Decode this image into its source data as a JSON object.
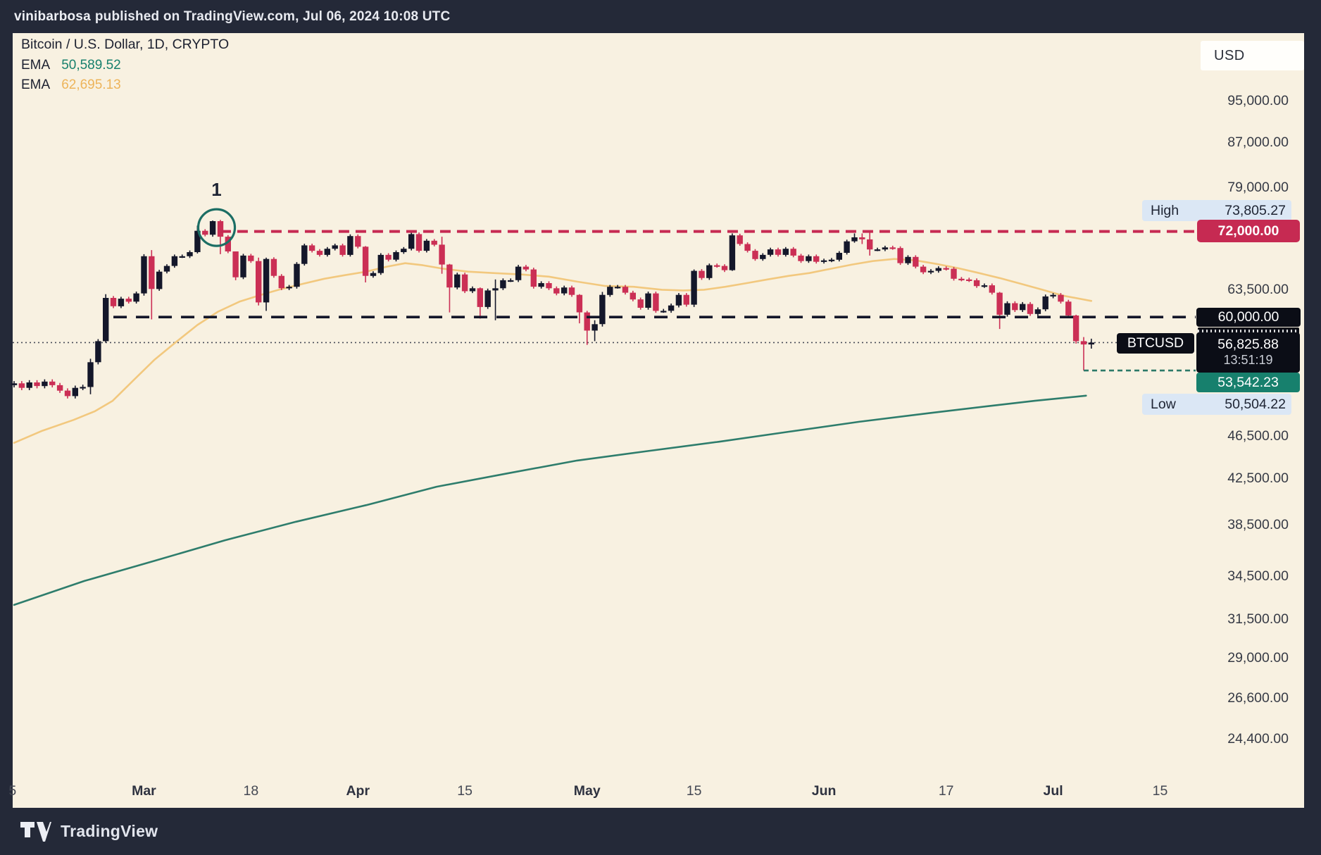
{
  "header": {
    "username": "vinibarbosa",
    "rest": "published on TradingView.com, Jul 06, 2024 10:08 UTC"
  },
  "legend": {
    "title": "Bitcoin / U.S. Dollar, 1D, CRYPTO",
    "ema_slow_label": "EMA",
    "ema_slow_value": "50,589.52",
    "ema_fast_label": "EMA",
    "ema_fast_value": "62,695.13"
  },
  "currency_button": "USD",
  "price_labels": {
    "high_label": "High",
    "high_value": "73,805.27",
    "resistance": "72,000.00",
    "support": "60,000.00",
    "symbol": "BTCUSD",
    "last_price": "56,825.88",
    "countdown": "13:51:19",
    "low_line": "53,542.23",
    "low_label": "Low",
    "low_value": "50,504.22"
  },
  "annotation": "1",
  "footer": {
    "brand": "TradingView"
  },
  "colors": {
    "background": "#242938",
    "paper": "#f8f1e1",
    "up_candle": "#14172a",
    "down_candle": "#cb2f55",
    "resistance_line": "#c62a52",
    "support_line": "#14172a",
    "last_price_line": "#474b57",
    "low_dash_line": "#2c7a69",
    "ema_slow": "#2e7d6c",
    "ema_fast": "#f2c87e",
    "annotation_circle": "#1c6e64",
    "badge_blue": "#dbe7f5",
    "badge_black": "#0b0d16",
    "badge_teal": "#17806d"
  },
  "chart_data": {
    "type": "candlestick",
    "symbol": "Bitcoin / U.S. Dollar",
    "interval": "1D",
    "exchange": "CRYPTO",
    "legend_position": "top-left",
    "grid": false,
    "scale": "logarithmic",
    "y_axis": {
      "ticks": [
        {
          "label": "95,000.00",
          "value": 95000
        },
        {
          "label": "87,000.00",
          "value": 87000
        },
        {
          "label": "79,000.00",
          "value": 79000
        },
        {
          "label": "63,500.00",
          "value": 63500
        },
        {
          "label": "46,500.00",
          "value": 46500
        },
        {
          "label": "42,500.00",
          "value": 42500
        },
        {
          "label": "38,500.00",
          "value": 38500
        },
        {
          "label": "34,500.00",
          "value": 34500
        },
        {
          "label": "31,500.00",
          "value": 31500
        },
        {
          "label": "29,000.00",
          "value": 29000
        },
        {
          "label": "26,600.00",
          "value": 26600
        },
        {
          "label": "24,400.00",
          "value": 24400
        }
      ]
    },
    "x_axis": {
      "ticks": [
        {
          "label": "5",
          "day": -0.2,
          "bold": false
        },
        {
          "label": "Mar",
          "day": 17,
          "bold": true
        },
        {
          "label": "18",
          "day": 31,
          "bold": false
        },
        {
          "label": "Apr",
          "day": 45,
          "bold": true
        },
        {
          "label": "15",
          "day": 59,
          "bold": false
        },
        {
          "label": "May",
          "day": 75,
          "bold": true
        },
        {
          "label": "15",
          "day": 89,
          "bold": false
        },
        {
          "label": "Jun",
          "day": 106,
          "bold": true
        },
        {
          "label": "17",
          "day": 122,
          "bold": false
        },
        {
          "label": "Jul",
          "day": 136,
          "bold": true
        },
        {
          "label": "15",
          "day": 150,
          "bold": false
        }
      ]
    },
    "levels": {
      "resistance": 72000,
      "resistance_start_day": 27,
      "support": 60000,
      "support_start_day": 13,
      "last_price": 56825.88,
      "low_line": 53542.23,
      "low_line_start_day": 140,
      "high_value": 73805.27,
      "low_value": 50504.22
    },
    "annotation_circle": {
      "day": 26.5,
      "price": 72600,
      "radius": 26,
      "label": "1"
    },
    "first_open": 51.9,
    "closes_k": [
      52.1,
      51.6,
      52.2,
      51.8,
      52.3,
      51.9,
      51.3,
      50.7,
      51.6,
      51.7,
      54.5,
      57.0,
      62.5,
      61.4,
      62.4,
      62.0,
      63.1,
      68.3,
      63.7,
      66.1,
      66.9,
      68.3,
      68.3,
      68.9,
      72.1,
      71.5,
      73.6,
      71.2,
      69.0,
      65.3,
      68.4,
      67.6,
      61.9,
      67.9,
      65.5,
      63.8,
      64.0,
      67.2,
      69.9,
      69.1,
      68.5,
      69.4,
      69.9,
      68.5,
      71.3,
      69.7,
      65.5,
      65.9,
      68.5,
      67.8,
      68.9,
      69.4,
      71.6,
      69.1,
      70.6,
      70.0,
      67.1,
      63.9,
      65.7,
      63.4,
      63.8,
      61.3,
      63.5,
      63.8,
      64.9,
      64.9,
      66.8,
      66.4,
      64.0,
      64.5,
      63.8,
      63.1,
      63.9,
      62.9,
      60.6,
      58.3,
      59.1,
      62.9,
      64.0,
      64.0,
      63.2,
      62.3,
      61.2,
      63.1,
      60.8,
      60.8,
      61.5,
      62.9,
      61.6,
      66.2,
      65.2,
      67.0,
      66.9,
      66.3,
      71.4,
      70.1,
      69.1,
      67.9,
      68.5,
      69.3,
      68.5,
      69.4,
      68.4,
      67.6,
      68.3,
      67.5,
      67.7,
      67.8,
      68.8,
      70.5,
      71.1,
      70.8,
      69.3,
      69.3,
      69.6,
      69.5,
      67.3,
      68.2,
      66.8,
      66.0,
      66.2,
      66.6,
      66.5,
      65.1,
      65.0,
      64.9,
      64.1,
      64.2,
      63.2,
      60.3,
      61.8,
      60.9,
      61.7,
      60.4,
      61.0,
      62.7,
      62.9,
      62.0,
      60.2,
      57.0,
      56.6,
      56.83
    ],
    "wicks_k": {
      "10": [
        54.9,
        50.9
      ],
      "12": [
        63.0,
        56.8
      ],
      "17": [
        68.6,
        62.8
      ],
      "18": [
        69.2,
        59.7
      ],
      "24": [
        72.9,
        68.7
      ],
      "26": [
        73.7,
        71.2
      ],
      "27": [
        73.805,
        68.6
      ],
      "29": [
        69.0,
        64.9
      ],
      "32": [
        68.1,
        61.5
      ],
      "33": [
        68.1,
        60.8
      ],
      "46": [
        69.8,
        64.6
      ],
      "56": [
        71.2,
        65.8
      ],
      "57": [
        67.2,
        60.6
      ],
      "61": [
        63.9,
        59.8
      ],
      "63": [
        65.0,
        59.6
      ],
      "74": [
        63.0,
        59.2
      ],
      "75": [
        60.8,
        56.55
      ],
      "76": [
        59.6,
        57.0
      ],
      "77": [
        63.3,
        58.8
      ],
      "89": [
        66.4,
        61.3
      ],
      "94": [
        71.7,
        66.2
      ],
      "110": [
        71.7,
        70.3
      ],
      "111": [
        71.7,
        70.1
      ],
      "112": [
        71.9,
        68.4
      ],
      "129": [
        63.3,
        58.5
      ],
      "139": [
        60.3,
        56.7
      ],
      "140": [
        57.5,
        53.542
      ],
      "141": [
        57.3,
        56.1
      ]
    },
    "ema_slow_points": [
      [
        0,
        32.5
      ],
      [
        9.2,
        34.2
      ],
      [
        18.4,
        35.7
      ],
      [
        27.6,
        37.3
      ],
      [
        36.9,
        38.8
      ],
      [
        46.1,
        40.2
      ],
      [
        55.3,
        41.8
      ],
      [
        64.5,
        43.0
      ],
      [
        73.7,
        44.2
      ],
      [
        82.9,
        45.1
      ],
      [
        92.2,
        46.0
      ],
      [
        101.4,
        47.0
      ],
      [
        110.6,
        48.0
      ],
      [
        119.8,
        48.9
      ],
      [
        127.2,
        49.6
      ],
      [
        133.6,
        50.2
      ],
      [
        140.3,
        50.75
      ]
    ],
    "ema_fast_points": [
      [
        0,
        45.9
      ],
      [
        3.7,
        47.1
      ],
      [
        7.8,
        48.2
      ],
      [
        10.6,
        49.1
      ],
      [
        12.9,
        50.2
      ],
      [
        15.7,
        52.5
      ],
      [
        18.4,
        54.8
      ],
      [
        21.2,
        56.9
      ],
      [
        24.0,
        59.0
      ],
      [
        26.7,
        60.7
      ],
      [
        29.5,
        62.0
      ],
      [
        32.3,
        62.9
      ],
      [
        35.0,
        63.7
      ],
      [
        37.8,
        64.4
      ],
      [
        40.6,
        65.1
      ],
      [
        43.3,
        65.6
      ],
      [
        46.1,
        66.1
      ],
      [
        48.8,
        66.8
      ],
      [
        51.2,
        67.3
      ],
      [
        53.5,
        67.0
      ],
      [
        56.2,
        66.5
      ],
      [
        59.4,
        66.1
      ],
      [
        62.7,
        65.9
      ],
      [
        66.4,
        65.7
      ],
      [
        70.0,
        65.4
      ],
      [
        73.7,
        64.7
      ],
      [
        77.4,
        64.1
      ],
      [
        81.1,
        64.0
      ],
      [
        84.8,
        63.6
      ],
      [
        87.6,
        63.5
      ],
      [
        90.3,
        63.6
      ],
      [
        93.1,
        64.0
      ],
      [
        95.9,
        64.5
      ],
      [
        98.6,
        65.0
      ],
      [
        101.4,
        65.5
      ],
      [
        104.1,
        65.9
      ],
      [
        106.9,
        66.5
      ],
      [
        109.7,
        67.1
      ],
      [
        112.4,
        67.6
      ],
      [
        115.2,
        67.9
      ],
      [
        118.0,
        67.7
      ],
      [
        120.7,
        67.2
      ],
      [
        123.5,
        66.6
      ],
      [
        126.3,
        65.9
      ],
      [
        129.0,
        65.2
      ],
      [
        131.8,
        64.4
      ],
      [
        134.6,
        63.6
      ],
      [
        137.3,
        62.8
      ],
      [
        141,
        62.1
      ]
    ]
  }
}
